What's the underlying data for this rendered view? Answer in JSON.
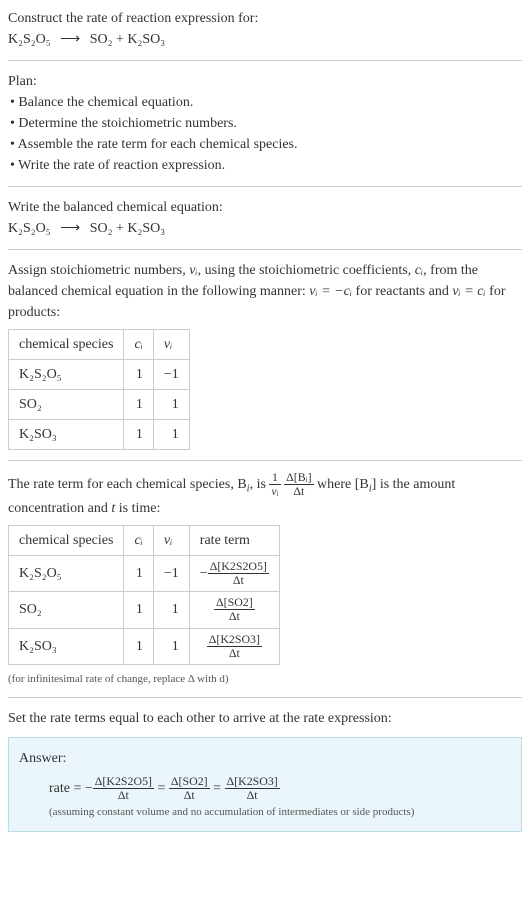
{
  "colors": {
    "text": "#333333",
    "rule": "#cccccc",
    "answer_bg": "#eaf6fb",
    "answer_border": "#b8dde8",
    "note": "#555555"
  },
  "header": {
    "intro": "Construct the rate of reaction expression for:",
    "equation_reactant": "K₂S₂O₅",
    "equation_arrow": "⟶",
    "equation_products": "SO₂ + K₂SO₃"
  },
  "plan": {
    "title": "Plan:",
    "items": [
      "• Balance the chemical equation.",
      "• Determine the stoichiometric numbers.",
      "• Assemble the rate term for each chemical species.",
      "• Write the rate of reaction expression."
    ]
  },
  "balanced": {
    "title": "Write the balanced chemical equation:",
    "equation_reactant": "K₂S₂O₅",
    "equation_arrow": "⟶",
    "equation_products": "SO₂ + K₂SO₃"
  },
  "stoich": {
    "intro_part1": "Assign stoichiometric numbers, ",
    "intro_nu": "νᵢ",
    "intro_part2": ", using the stoichiometric coefficients, ",
    "intro_c": "cᵢ",
    "intro_part3": ", from the balanced chemical equation in the following manner: ",
    "intro_eq1": "νᵢ = −cᵢ",
    "intro_part4": " for reactants and ",
    "intro_eq2": "νᵢ = cᵢ",
    "intro_part5": " for products:",
    "headers": {
      "species": "chemical species",
      "c": "cᵢ",
      "nu": "νᵢ"
    },
    "rows": [
      {
        "species": "K₂S₂O₅",
        "c": "1",
        "nu": "−1"
      },
      {
        "species": "SO₂",
        "c": "1",
        "nu": "1"
      },
      {
        "species": "K₂SO₃",
        "c": "1",
        "nu": "1"
      }
    ]
  },
  "rateterm": {
    "intro_part1": "The rate term for each chemical species, B",
    "intro_sub": "i",
    "intro_part2": ", is ",
    "frac1_num": "1",
    "frac1_den": "νᵢ",
    "frac2_num": "Δ[Bᵢ]",
    "frac2_den": "Δt",
    "intro_part3": " where [B",
    "intro_part4": "] is the amount concentration and ",
    "intro_t": "t",
    "intro_part5": " is time:",
    "headers": {
      "species": "chemical species",
      "c": "cᵢ",
      "nu": "νᵢ",
      "rate": "rate term"
    },
    "rows": [
      {
        "species": "K₂S₂O₅",
        "c": "1",
        "nu": "−1",
        "sign": "−",
        "num": "Δ[K2S2O5]",
        "den": "Δt"
      },
      {
        "species": "SO₂",
        "c": "1",
        "nu": "1",
        "sign": "",
        "num": "Δ[SO2]",
        "den": "Δt"
      },
      {
        "species": "K₂SO₃",
        "c": "1",
        "nu": "1",
        "sign": "",
        "num": "Δ[K2SO3]",
        "den": "Δt"
      }
    ],
    "note": "(for infinitesimal rate of change, replace Δ with d)"
  },
  "final": {
    "title": "Set the rate terms equal to each other to arrive at the rate expression:"
  },
  "answer": {
    "label": "Answer:",
    "prefix": "rate = −",
    "eq": " = ",
    "terms": [
      {
        "num": "Δ[K2S2O5]",
        "den": "Δt"
      },
      {
        "num": "Δ[SO2]",
        "den": "Δt"
      },
      {
        "num": "Δ[K2SO3]",
        "den": "Δt"
      }
    ],
    "note": "(assuming constant volume and no accumulation of intermediates or side products)"
  }
}
